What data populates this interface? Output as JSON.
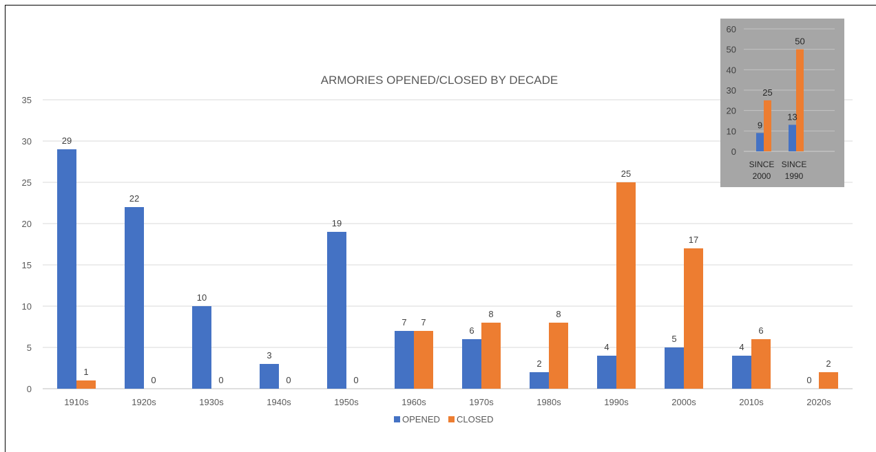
{
  "chart_data": [
    {
      "type": "bar",
      "title": "ARMORIES OPENED/CLOSED BY DECADE",
      "xlabel": "",
      "ylabel": "",
      "categories": [
        "1910s",
        "1920s",
        "1930s",
        "1940s",
        "1950s",
        "1960s",
        "1970s",
        "1980s",
        "1990s",
        "2000s",
        "2010s",
        "2020s"
      ],
      "series": [
        {
          "name": "OPENED",
          "color": "#4472c4",
          "values": [
            29,
            22,
            10,
            3,
            19,
            7,
            6,
            2,
            4,
            5,
            4,
            0
          ],
          "labels": [
            "29",
            "22",
            "10",
            "3",
            "19",
            "7",
            "6",
            "2",
            "4",
            "5",
            "4",
            "0"
          ]
        },
        {
          "name": "CLOSED",
          "color": "#ed7d31",
          "values": [
            1,
            0,
            0,
            0,
            0,
            7,
            8,
            8,
            25,
            17,
            6,
            2
          ],
          "labels": [
            "1",
            "0",
            "0",
            "0",
            "0",
            "7",
            "8",
            "8",
            "25",
            "17",
            "6",
            "2"
          ]
        }
      ],
      "ylim": [
        0,
        35
      ],
      "yticks": [
        0,
        5,
        10,
        15,
        20,
        25,
        30,
        35
      ],
      "grid": true,
      "legend": "bottom-center"
    },
    {
      "type": "bar",
      "title": "",
      "categories": [
        [
          "SINCE",
          "2000"
        ],
        [
          "SINCE",
          "1990"
        ]
      ],
      "series": [
        {
          "name": "",
          "color": "#4472c4",
          "values": [
            9,
            13
          ],
          "labels": [
            "9",
            "13"
          ]
        },
        {
          "name": "",
          "color": "#ed7d31",
          "values": [
            25,
            50
          ],
          "labels": [
            "25",
            "50"
          ]
        }
      ],
      "ylim": [
        0,
        60
      ],
      "yticks": [
        0,
        10,
        20,
        30,
        40,
        50,
        60
      ],
      "grid": true,
      "background": "#a6a6a6"
    }
  ]
}
